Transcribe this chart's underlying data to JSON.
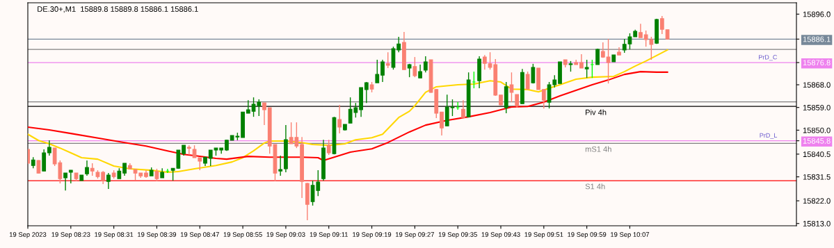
{
  "chart_data": {
    "type": "candlestick",
    "title": "DE.30+,M1  15889.8 15889.8 15886.1 15886.1",
    "xlim": [
      "2023-09-19T08:15",
      "2023-09-19T10:38"
    ],
    "xticks": [
      {
        "value": "2023-09-19T08:15",
        "label": "19 Sep 2023"
      },
      {
        "value": "2023-09-19T08:23",
        "label": "19 Sep 08:23"
      },
      {
        "value": "2023-09-19T08:31",
        "label": "19 Sep 08:31"
      },
      {
        "value": "2023-09-19T08:39",
        "label": "19 Sep 08:39"
      },
      {
        "value": "2023-09-19T08:47",
        "label": "19 Sep 08:47"
      },
      {
        "value": "2023-09-19T08:55",
        "label": "19 Sep 08:55"
      },
      {
        "value": "2023-09-19T09:03",
        "label": "19 Sep 09:03"
      },
      {
        "value": "2023-09-19T09:11",
        "label": "19 Sep 09:11"
      },
      {
        "value": "2023-09-19T09:19",
        "label": "19 Sep 09:19"
      },
      {
        "value": "2023-09-19T09:27",
        "label": "19 Sep 09:27"
      },
      {
        "value": "2023-09-19T09:35",
        "label": "19 Sep 09:35"
      },
      {
        "value": "2023-09-19T09:43",
        "label": "19 Sep 09:43"
      },
      {
        "value": "2023-09-19T09:51",
        "label": "19 Sep 09:51"
      },
      {
        "value": "2023-09-19T09:59",
        "label": "19 Sep 09:59"
      },
      {
        "value": "2023-09-19T10:07",
        "label": "19 Sep 10:07"
      }
    ],
    "ylim": [
      15812.1,
      15900.5
    ],
    "yticks": [
      {
        "value": 15896,
        "label": "15896.0"
      },
      {
        "value": 15886.1,
        "label": "15886.1"
      },
      {
        "value": 15876.8,
        "label": "15876.8"
      },
      {
        "value": 15868,
        "label": "15868.0"
      },
      {
        "value": 15859,
        "label": "15859.0"
      },
      {
        "value": 15850,
        "label": "15850.0"
      },
      {
        "value": 15845.8,
        "label": "15845.8"
      },
      {
        "value": 15840.5,
        "label": "15840.5"
      },
      {
        "value": 15831.5,
        "label": "15831.5"
      },
      {
        "value": 15822,
        "label": "15822.0"
      },
      {
        "value": 15813,
        "label": "15813.0"
      }
    ],
    "ref_lines": [
      {
        "axis": "y",
        "value": 15886.1,
        "color": "#778899"
      },
      {
        "axis": "y",
        "value": 15882.0,
        "color": "#808080"
      },
      {
        "axis": "y",
        "value": 15876.8,
        "color": "#ee82ee",
        "label": "PrD_C"
      },
      {
        "axis": "y",
        "value": 15861.2,
        "color": "#808080"
      },
      {
        "axis": "y",
        "value": 15859.4,
        "color": "#000000",
        "label": "Piv 4h"
      },
      {
        "axis": "y",
        "value": 15845.8,
        "color": "#ee82ee",
        "label": "PrD_L"
      },
      {
        "axis": "y",
        "value": 15844.8,
        "color": "#808080",
        "label": "mS1 4h"
      },
      {
        "axis": "y",
        "value": 15830.0,
        "color": "#ff0000",
        "label": "S1 4h"
      }
    ],
    "series": [
      {
        "type": "candlestick",
        "x": [
          "2023-09-19T08:15",
          "2023-09-19T08:16",
          "2023-09-19T08:17",
          "2023-09-19T08:18",
          "2023-09-19T08:19",
          "2023-09-19T08:20",
          "2023-09-19T08:21",
          "2023-09-19T08:22",
          "2023-09-19T08:23",
          "2023-09-19T08:24",
          "2023-09-19T08:25",
          "2023-09-19T08:26",
          "2023-09-19T08:27",
          "2023-09-19T08:28",
          "2023-09-19T08:29",
          "2023-09-19T08:30",
          "2023-09-19T08:31",
          "2023-09-19T08:32",
          "2023-09-19T08:33",
          "2023-09-19T08:34",
          "2023-09-19T08:35",
          "2023-09-19T08:36",
          "2023-09-19T08:37",
          "2023-09-19T08:38",
          "2023-09-19T08:39",
          "2023-09-19T08:40",
          "2023-09-19T08:41",
          "2023-09-19T08:42",
          "2023-09-19T08:43",
          "2023-09-19T08:44",
          "2023-09-19T08:45",
          "2023-09-19T08:46",
          "2023-09-19T08:47",
          "2023-09-19T08:48",
          "2023-09-19T08:49",
          "2023-09-19T08:50",
          "2023-09-19T08:51",
          "2023-09-19T08:52",
          "2023-09-19T08:53",
          "2023-09-19T08:54",
          "2023-09-19T08:55",
          "2023-09-19T08:56",
          "2023-09-19T08:57",
          "2023-09-19T08:58",
          "2023-09-19T08:59",
          "2023-09-19T09:00",
          "2023-09-19T09:01",
          "2023-09-19T09:02",
          "2023-09-19T09:03",
          "2023-09-19T09:04",
          "2023-09-19T09:05",
          "2023-09-19T09:06",
          "2023-09-19T09:07",
          "2023-09-19T09:08",
          "2023-09-19T09:09",
          "2023-09-19T09:10",
          "2023-09-19T09:11",
          "2023-09-19T09:12",
          "2023-09-19T09:13",
          "2023-09-19T09:14",
          "2023-09-19T09:15",
          "2023-09-19T09:16",
          "2023-09-19T09:17",
          "2023-09-19T09:18",
          "2023-09-19T09:19",
          "2023-09-19T09:20",
          "2023-09-19T09:21",
          "2023-09-19T09:22",
          "2023-09-19T09:23",
          "2023-09-19T09:24",
          "2023-09-19T09:25",
          "2023-09-19T09:26",
          "2023-09-19T09:27",
          "2023-09-19T09:28",
          "2023-09-19T09:29",
          "2023-09-19T09:30",
          "2023-09-19T09:31",
          "2023-09-19T09:32",
          "2023-09-19T09:33",
          "2023-09-19T09:34",
          "2023-09-19T09:35",
          "2023-09-19T09:36",
          "2023-09-19T09:37",
          "2023-09-19T09:38",
          "2023-09-19T09:39",
          "2023-09-19T09:40",
          "2023-09-19T09:41",
          "2023-09-19T09:42",
          "2023-09-19T09:43",
          "2023-09-19T09:44",
          "2023-09-19T09:45",
          "2023-09-19T09:46",
          "2023-09-19T09:47",
          "2023-09-19T09:48",
          "2023-09-19T09:49",
          "2023-09-19T09:50",
          "2023-09-19T09:51",
          "2023-09-19T09:52",
          "2023-09-19T09:53",
          "2023-09-19T09:54",
          "2023-09-19T09:55",
          "2023-09-19T09:56",
          "2023-09-19T09:57",
          "2023-09-19T09:58",
          "2023-09-19T09:59",
          "2023-09-19T10:00",
          "2023-09-19T10:01",
          "2023-09-19T10:02",
          "2023-09-19T10:03",
          "2023-09-19T10:04",
          "2023-09-19T10:05",
          "2023-09-19T10:06",
          "2023-09-19T10:07",
          "2023-09-19T10:08",
          "2023-09-19T10:09",
          "2023-09-19T10:10",
          "2023-09-19T10:11",
          "2023-09-19T10:12",
          "2023-09-19T10:13",
          "2023-09-19T10:14"
        ],
        "ohlc": [
          [
            15842.4,
            15842.4,
            15836.6,
            15836.9
          ],
          [
            15836.0,
            15839.3,
            15834.9,
            15838.2
          ],
          [
            15838.0,
            15838.1,
            15832.9,
            15833.0
          ],
          [
            15833.8,
            15842.4,
            15833.8,
            15841.0
          ],
          [
            15841.0,
            15846.0,
            15839.9,
            15843.2
          ],
          [
            15842.9,
            15842.9,
            15835.8,
            15836.6
          ],
          [
            15837.1,
            15838.0,
            15828.9,
            15830.8
          ],
          [
            15831.1,
            15833.0,
            15826.1,
            15833.0
          ],
          [
            15833.3,
            15834.2,
            15828.9,
            15834.1
          ],
          [
            15833.0,
            15833.0,
            15829.7,
            15830.8
          ],
          [
            15830.0,
            15832.2,
            15830.0,
            15832.2
          ],
          [
            15832.7,
            15838.0,
            15831.9,
            15835.2
          ],
          [
            15834.9,
            15836.9,
            15831.9,
            15833.8
          ],
          [
            15833.3,
            15834.1,
            15830.8,
            15831.6
          ],
          [
            15833.3,
            15833.8,
            15828.6,
            15830.0
          ],
          [
            15829.7,
            15833.0,
            15826.7,
            15832.2
          ],
          [
            15833.0,
            15834.1,
            15830.8,
            15831.6
          ],
          [
            15830.8,
            15834.9,
            15830.8,
            15833.8
          ],
          [
            15833.0,
            15836.9,
            15831.9,
            15836.9
          ],
          [
            15836.0,
            15836.9,
            15834.7,
            15834.7
          ],
          [
            15834.4,
            15834.4,
            15830.0,
            15833.0
          ],
          [
            15833.0,
            15833.0,
            15831.1,
            15831.9
          ],
          [
            15833.0,
            15834.1,
            15831.1,
            15831.6
          ],
          [
            15831.9,
            15835.2,
            15831.9,
            15834.1
          ],
          [
            15833.6,
            15834.7,
            15829.7,
            15830.8
          ],
          [
            15831.1,
            15834.9,
            15831.1,
            15833.3
          ],
          [
            15833.8,
            15834.7,
            15833.0,
            15833.8
          ],
          [
            15834.1,
            15834.9,
            15830.0,
            15834.9
          ],
          [
            15834.9,
            15842.1,
            15834.7,
            15842.1
          ],
          [
            15840.7,
            15844.0,
            15839.9,
            15844.0
          ],
          [
            15843.2,
            15844.0,
            15840.2,
            15842.8
          ],
          [
            15842.4,
            15844.0,
            15839.1,
            15839.1
          ],
          [
            15839.1,
            15839.1,
            15834.1,
            15837.7
          ],
          [
            15836.9,
            15839.3,
            15835.8,
            15839.3
          ],
          [
            15838.8,
            15842.1,
            15835.8,
            15842.1
          ],
          [
            15842.1,
            15842.9,
            15839.9,
            15842.9
          ],
          [
            15842.1,
            15842.9,
            15840.7,
            15842.9
          ],
          [
            15842.1,
            15846.2,
            15841.8,
            15846.0
          ],
          [
            15846.0,
            15847.9,
            15846.0,
            15847.9
          ],
          [
            15847.3,
            15849.0,
            15846.0,
            15847.6
          ],
          [
            15847.1,
            15857.2,
            15847.1,
            15857.2
          ],
          [
            15856.7,
            15861.9,
            15856.7,
            15858.1
          ],
          [
            15857.5,
            15863.0,
            15855.3,
            15860.3
          ],
          [
            15859.7,
            15862.2,
            15855.6,
            15861.1
          ],
          [
            15860.8,
            15860.8,
            15852.0,
            15858.1
          ],
          [
            15858.9,
            15858.9,
            15840.7,
            15843.7
          ],
          [
            15844.3,
            15844.3,
            15829.7,
            15833.0
          ],
          [
            15833.8,
            15839.9,
            15831.9,
            15834.4
          ],
          [
            15834.7,
            15852.0,
            15833.3,
            15846.2
          ],
          [
            15847.1,
            15853.1,
            15844.6,
            15844.6
          ],
          [
            15847.1,
            15853.1,
            15842.9,
            15843.7
          ],
          [
            15844.3,
            15847.3,
            15823.1,
            15829.7
          ],
          [
            15828.9,
            15829.1,
            15814.3,
            15820.6
          ],
          [
            15821.7,
            15830.0,
            15820.1,
            15828.1
          ],
          [
            15826.1,
            15834.1,
            15823.9,
            15829.4
          ],
          [
            15830.8,
            15846.2,
            15830.0,
            15842.9
          ],
          [
            15844.0,
            15846.2,
            15840.2,
            15841.0
          ],
          [
            15840.7,
            15855.3,
            15840.4,
            15855.0
          ],
          [
            15854.2,
            15860.0,
            15848.7,
            15851.2
          ],
          [
            15850.1,
            15852.3,
            15849.8,
            15852.3
          ],
          [
            15852.8,
            15863.0,
            15852.8,
            15858.3
          ],
          [
            15857.0,
            15860.8,
            15855.0,
            15858.9
          ],
          [
            15858.1,
            15866.9,
            15855.3,
            15866.9
          ],
          [
            15866.1,
            15869.1,
            15860.8,
            15868.8
          ],
          [
            15868.0,
            15869.1,
            15865.0,
            15866.3
          ],
          [
            15868.8,
            15877.9,
            15868.8,
            15872.1
          ],
          [
            15871.8,
            15877.9,
            15869.1,
            15877.1
          ],
          [
            15876.3,
            15880.9,
            15874.6,
            15875.7
          ],
          [
            15874.9,
            15883.1,
            15874.0,
            15882.3
          ],
          [
            15881.8,
            15887.0,
            15880.9,
            15884.2
          ],
          [
            15884.8,
            15888.9,
            15874.0,
            15874.0
          ],
          [
            15874.6,
            15876.3,
            15871.0,
            15876.0
          ],
          [
            15875.2,
            15879.0,
            15871.0,
            15871.6
          ],
          [
            15870.7,
            15876.0,
            15870.7,
            15873.2
          ],
          [
            15873.8,
            15879.3,
            15872.9,
            15877.1
          ],
          [
            15877.9,
            15877.9,
            15864.8,
            15865.0
          ],
          [
            15866.1,
            15866.3,
            15854.8,
            15856.7
          ],
          [
            15857.2,
            15857.2,
            15847.9,
            15850.9
          ],
          [
            15851.7,
            15864.1,
            15851.7,
            15859.2
          ],
          [
            15858.9,
            15862.2,
            15855.6,
            15859.2
          ],
          [
            15858.9,
            15861.1,
            15858.1,
            15858.9
          ],
          [
            15858.3,
            15861.9,
            15855.0,
            15855.0
          ],
          [
            15855.3,
            15872.9,
            15855.3,
            15869.9
          ],
          [
            15869.1,
            15873.2,
            15866.6,
            15869.1
          ],
          [
            15869.6,
            15879.3,
            15866.6,
            15878.2
          ],
          [
            15879.0,
            15879.8,
            15874.0,
            15876.5
          ],
          [
            15876.3,
            15880.9,
            15874.0,
            15874.9
          ],
          [
            15876.0,
            15878.2,
            15863.6,
            15863.9
          ],
          [
            15863.9,
            15863.9,
            15859.7,
            15860.0
          ],
          [
            15858.9,
            15869.1,
            15856.7,
            15867.2
          ],
          [
            15868.0,
            15872.9,
            15861.1,
            15865.0
          ],
          [
            15864.1,
            15864.1,
            15858.9,
            15859.7
          ],
          [
            15860.5,
            15874.3,
            15860.5,
            15872.9
          ],
          [
            15872.1,
            15873.2,
            15866.3,
            15866.3
          ],
          [
            15868.8,
            15876.3,
            15868.5,
            15874.9
          ],
          [
            15874.6,
            15874.6,
            15866.1,
            15866.1
          ],
          [
            15866.1,
            15866.1,
            15858.6,
            15861.9
          ],
          [
            15861.1,
            15869.1,
            15858.6,
            15868.0
          ],
          [
            15868.0,
            15871.8,
            15866.9,
            15869.9
          ],
          [
            15868.5,
            15877.1,
            15868.5,
            15877.1
          ],
          [
            15877.9,
            15877.9,
            15874.9,
            15876.0
          ],
          [
            15876.0,
            15877.4,
            15873.2,
            15876.3
          ],
          [
            15876.8,
            15877.9,
            15876.0,
            15876.0
          ],
          [
            15876.8,
            15880.1,
            15874.6,
            15874.6
          ],
          [
            15874.3,
            15877.9,
            15870.7,
            15874.9
          ],
          [
            15876.0,
            15877.9,
            15870.7,
            15876.0
          ],
          [
            15876.0,
            15882.3,
            15876.0,
            15882.0
          ],
          [
            15881.2,
            15884.8,
            15878.7,
            15879.0
          ],
          [
            15879.0,
            15886.2,
            15868.5,
            15876.8
          ],
          [
            15877.1,
            15879.8,
            15877.1,
            15879.8
          ],
          [
            15880.9,
            15882.9,
            15879.8,
            15879.8
          ],
          [
            15881.8,
            15886.2,
            15880.7,
            15884.0
          ],
          [
            15884.2,
            15888.4,
            15882.0,
            15887.0
          ],
          [
            15887.0,
            15889.8,
            15887.0,
            15889.2
          ],
          [
            15888.7,
            15892.2,
            15886.7,
            15886.7
          ],
          [
            15887.8,
            15889.5,
            15883.1,
            15885.9
          ],
          [
            15885.9,
            15887.0,
            15877.9,
            15884.0
          ],
          [
            15884.5,
            15894.2,
            15884.2,
            15893.9
          ],
          [
            15894.2,
            15895.3,
            15888.1,
            15890.0
          ],
          [
            15889.8,
            15889.8,
            15886.1,
            15886.1
          ]
        ],
        "colors": [
          "#fa8072",
          "#008000",
          "#fa8072",
          "#008000",
          "#008000",
          "#fa8072",
          "#fa8072",
          "#008000",
          "#008000",
          "#fa8072",
          "#008000",
          "#008000",
          "#fa8072",
          "#fa8072",
          "#fa8072",
          "#008000",
          "#fa8072",
          "#008000",
          "#008000",
          "#fa8072",
          "#fa8072",
          "#fa8072",
          "#fa8072",
          "#008000",
          "#fa8072",
          "#008000",
          "#00ff00",
          "#008000",
          "#008000",
          "#008000",
          "#fa8072",
          "#fa8072",
          "#fa8072",
          "#008000",
          "#008000",
          "#008000",
          "#008000",
          "#008000",
          "#008000",
          "#008000",
          "#008000",
          "#008000",
          "#008000",
          "#008000",
          "#fa8072",
          "#fa8072",
          "#fa8072",
          "#008000",
          "#008000",
          "#fa8072",
          "#fa8072",
          "#fa8072",
          "#fa8072",
          "#008000",
          "#008000",
          "#008000",
          "#fa8072",
          "#008000",
          "#fa8072",
          "#008000",
          "#008000",
          "#008000",
          "#008000",
          "#008000",
          "#fa8072",
          "#008000",
          "#008000",
          "#fa8072",
          "#008000",
          "#008000",
          "#fa8072",
          "#008000",
          "#fa8072",
          "#008000",
          "#008000",
          "#fa8072",
          "#fa8072",
          "#fa8072",
          "#008000",
          "#008000",
          "#00ff00",
          "#fa8072",
          "#008000",
          "#00ff00",
          "#008000",
          "#fa8072",
          "#fa8072",
          "#fa8072",
          "#fa8072",
          "#008000",
          "#fa8072",
          "#fa8072",
          "#008000",
          "#fa8072",
          "#008000",
          "#fa8072",
          "#fa8072",
          "#008000",
          "#008000",
          "#008000",
          "#fa8072",
          "#008000",
          "#fa8072",
          "#fa8072",
          "#008000",
          "#00ff00",
          "#008000",
          "#fa8072",
          "#fa8072",
          "#008000",
          "#fa8072",
          "#008000",
          "#008000",
          "#008000",
          "#fa8072",
          "#fa8072",
          "#fa8072",
          "#008000",
          "#fa8072",
          "#fa8072"
        ]
      },
      {
        "type": "line",
        "color": "#ffd700",
        "x": [
          "2023-09-19T08:15",
          "2023-09-19T08:17",
          "2023-09-19T08:19",
          "2023-09-19T08:21",
          "2023-09-19T08:23",
          "2023-09-19T08:25",
          "2023-09-19T08:28",
          "2023-09-19T08:31",
          "2023-09-19T08:34",
          "2023-09-19T08:38",
          "2023-09-19T08:41",
          "2023-09-19T08:43",
          "2023-09-19T08:46",
          "2023-09-19T08:50",
          "2023-09-19T08:53",
          "2023-09-19T08:55",
          "2023-09-19T08:57",
          "2023-09-19T08:59",
          "2023-09-19T09:00",
          "2023-09-19T09:03",
          "2023-09-19T09:06",
          "2023-09-19T09:08",
          "2023-09-19T09:11",
          "2023-09-19T09:14",
          "2023-09-19T09:16",
          "2023-09-19T09:19",
          "2023-09-19T09:21",
          "2023-09-19T09:24",
          "2023-09-19T09:26",
          "2023-09-19T09:27",
          "2023-09-19T09:29",
          "2023-09-19T09:31",
          "2023-09-19T09:35",
          "2023-09-19T09:38",
          "2023-09-19T09:41",
          "2023-09-19T09:43",
          "2023-09-19T09:45",
          "2023-09-19T09:48",
          "2023-09-19T09:50",
          "2023-09-19T09:52",
          "2023-09-19T09:54",
          "2023-09-19T09:57",
          "2023-09-19T10:00",
          "2023-09-19T10:04",
          "2023-09-19T10:06",
          "2023-09-19T10:08",
          "2023-09-19T10:10",
          "2023-09-19T10:12",
          "2023-09-19T10:14"
        ],
        "values": [
          15848.4,
          15845.9,
          15844.6,
          15842.9,
          15841.0,
          15839.1,
          15838.5,
          15835.8,
          15834.7,
          15834.1,
          15833.3,
          15833.6,
          15834.7,
          15836.0,
          15837.4,
          15839.1,
          15841.8,
          15844.9,
          15845.7,
          15845.7,
          15845.1,
          15844.3,
          15844.0,
          15844.6,
          15846.2,
          15847.0,
          15848.4,
          15855.0,
          15857.5,
          15859.7,
          15865.0,
          15867.2,
          15868.0,
          15868.3,
          15869.6,
          15869.1,
          15866.3,
          15866.1,
          15865.2,
          15866.6,
          15868.0,
          15870.2,
          15871.0,
          15871.3,
          15873.2,
          15875.4,
          15877.4,
          15879.6,
          15881.8
        ]
      },
      {
        "type": "line",
        "color": "#ff0000",
        "x": [
          "2023-09-19T08:15",
          "2023-09-19T08:19",
          "2023-09-19T08:23",
          "2023-09-19T08:29",
          "2023-09-19T08:33",
          "2023-09-19T08:37",
          "2023-09-19T08:41",
          "2023-09-19T08:44",
          "2023-09-19T08:46",
          "2023-09-19T08:50",
          "2023-09-19T08:52",
          "2023-09-19T08:56",
          "2023-09-19T09:00",
          "2023-09-19T09:06",
          "2023-09-19T09:09",
          "2023-09-19T09:10",
          "2023-09-19T09:12",
          "2023-09-19T09:15",
          "2023-09-19T09:19",
          "2023-09-19T09:22",
          "2023-09-19T09:26",
          "2023-09-19T09:29",
          "2023-09-19T09:33",
          "2023-09-19T09:37",
          "2023-09-19T09:41",
          "2023-09-19T09:45",
          "2023-09-19T09:48",
          "2023-09-19T09:51",
          "2023-09-19T09:54",
          "2023-09-19T09:57",
          "2023-09-19T10:00",
          "2023-09-19T10:03",
          "2023-09-19T10:06",
          "2023-09-19T10:09",
          "2023-09-19T10:12",
          "2023-09-19T10:14"
        ],
        "values": [
          15851.2,
          15850.1,
          15848.7,
          15846.5,
          15845.1,
          15843.7,
          15841.8,
          15840.4,
          15839.9,
          15838.8,
          15838.5,
          15839.6,
          15839.3,
          15839.3,
          15839.1,
          15838.0,
          15839.3,
          15841.3,
          15842.6,
          15845.1,
          15849.3,
          15852.0,
          15853.9,
          15855.3,
          15857.0,
          15859.2,
          15859.4,
          15861.1,
          15863.6,
          15865.8,
          15868.0,
          15869.9,
          15872.1,
          15873.2,
          15873.0,
          15873.0
        ]
      }
    ]
  }
}
